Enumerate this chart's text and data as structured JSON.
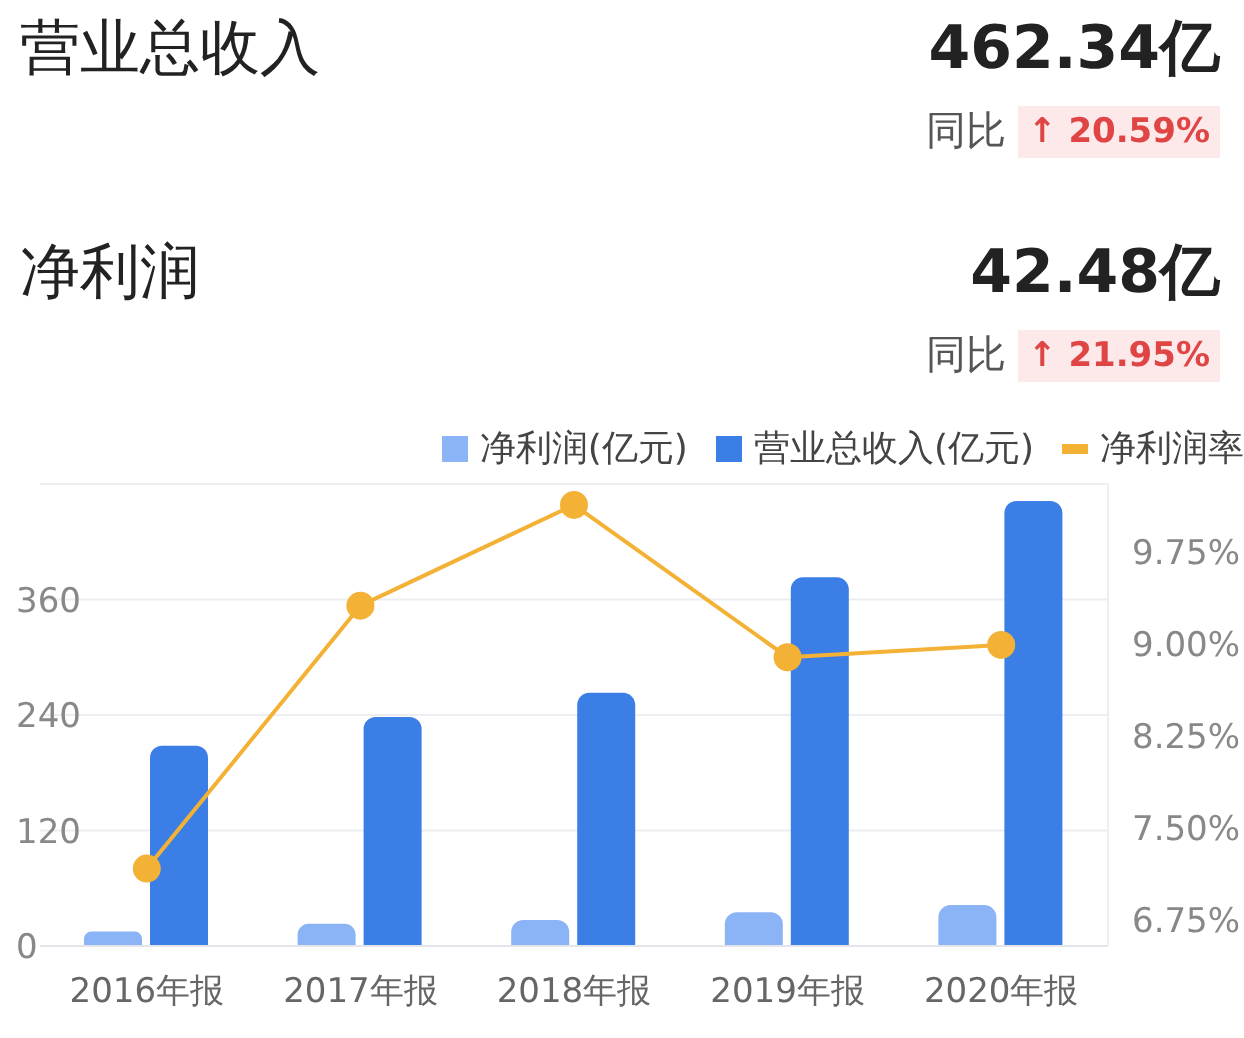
{
  "chart_data": {
    "type": "bar",
    "annotations": [
      "营业总收入",
      "462.34亿",
      "同比",
      "↑ 20.59%",
      "净利润",
      "42.48亿",
      "同比",
      "↑ 21.95%"
    ],
    "categories": [
      "2016年报",
      "2017年报",
      "2018年报",
      "2019年报",
      "2020年报"
    ],
    "series": [
      {
        "name": "净利润(亿元)",
        "color": "#8ab4f5",
        "values": [
          15,
          23,
          27,
          35,
          42.48
        ]
      },
      {
        "name": "营业总收入(亿元)",
        "color": "#3a7ee6",
        "values": [
          208,
          238,
          263,
          383,
          462.34
        ]
      },
      {
        "name": "净利润率",
        "type": "line",
        "axis": "y2",
        "color": "#f3b236",
        "values": [
          7.17,
          9.31,
          10.13,
          8.89,
          8.99
        ]
      }
    ],
    "ylim": [
      0,
      480
    ],
    "yticks": [
      0,
      120,
      240,
      360,
      {
        "value": 480,
        "label": null
      }
    ],
    "y2lim": [
      6.54,
      10.3
    ],
    "y2ticks": [
      {
        "value": 6.75,
        "label": "6.75%"
      },
      {
        "value": 7.5,
        "label": "7.50%"
      },
      {
        "value": 8.25,
        "label": "8.25%"
      },
      {
        "value": 9,
        "label": "9.00%"
      },
      {
        "value": 9.75,
        "label": "9.75%"
      }
    ],
    "grid": "y",
    "legend": "top right",
    "marker": "circle",
    "line_style": "solid"
  }
}
